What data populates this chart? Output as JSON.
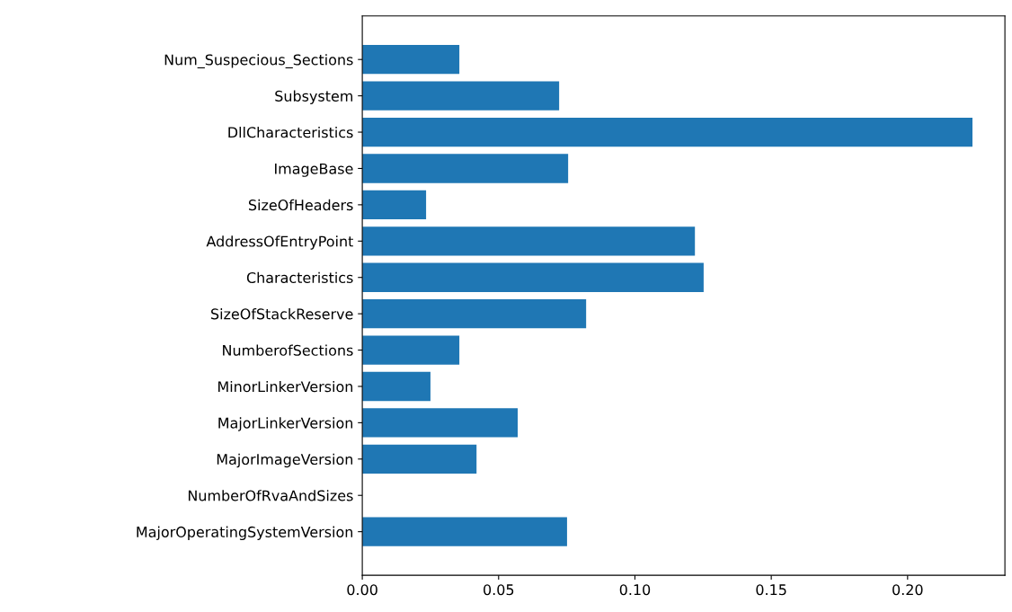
{
  "chart_data": {
    "type": "bar",
    "orientation": "horizontal",
    "categories": [
      "Num_Suspecious_Sections",
      "Subsystem",
      "DllCharacteristics",
      "ImageBase",
      "SizeOfHeaders",
      "AddressOfEntryPoint",
      "Characteristics",
      "SizeOfStackReserve",
      "NumberofSections",
      "MinorLinkerVersion",
      "MajorLinkerVersion",
      "MajorImageVersion",
      "NumberOfRvaAndSizes",
      "MajorOperatingSystemVersion"
    ],
    "values": [
      0.0356,
      0.0722,
      0.2238,
      0.0755,
      0.0234,
      0.122,
      0.1252,
      0.0821,
      0.0356,
      0.025,
      0.057,
      0.0419,
      0,
      0.0751
    ],
    "color": "#1f77b4",
    "xlim": [
      0,
      0.2357
    ],
    "xticks": [
      {
        "value": 0,
        "label": "0.00"
      },
      {
        "value": 0.05,
        "label": "0.05"
      },
      {
        "value": 0.1,
        "label": "0.10"
      },
      {
        "value": 0.15,
        "label": "0.15"
      },
      {
        "value": 0.2,
        "label": "0.20"
      }
    ],
    "grid": false
  }
}
